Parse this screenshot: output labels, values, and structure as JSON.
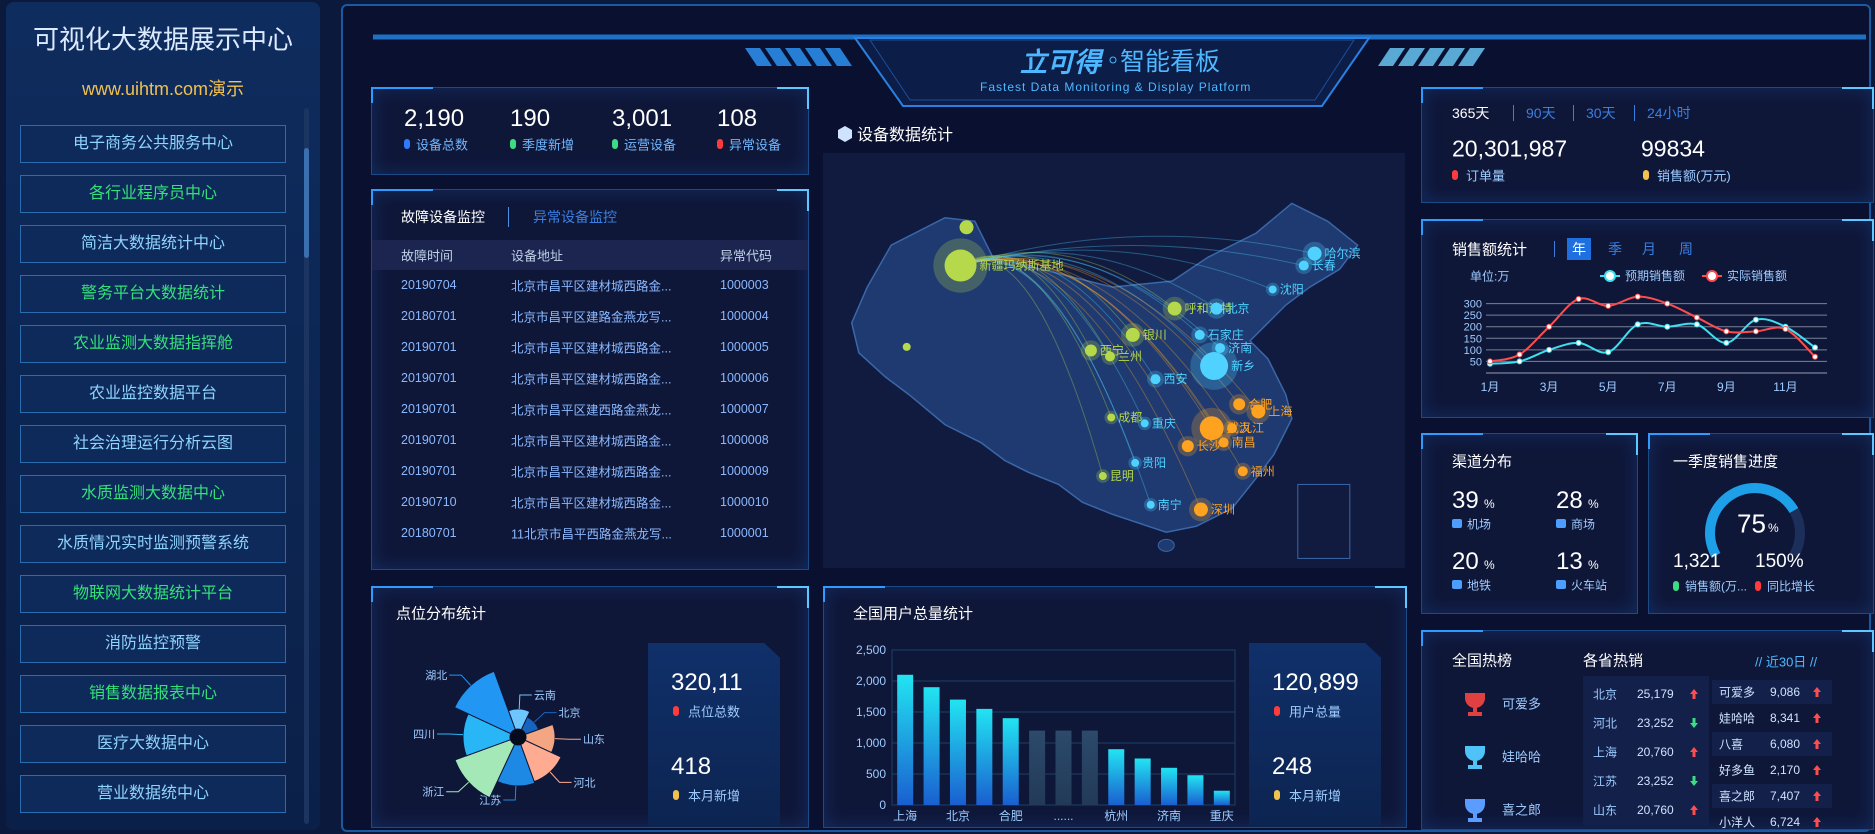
{
  "sidebar": {
    "title": "可视化大数据展示中心",
    "url": "www.uihtm.com演示",
    "menu": [
      "电子商务公共服务中心",
      "各行业程序员中心",
      "简洁大数据统计中心",
      "警务平台大数据统计",
      "农业监测大数据指挥舱",
      "农业监控数据平台",
      "社会治理运行分析云图",
      "水质监测大数据中心",
      "水质情况实时监测预警系统",
      "物联网大数据统计平台",
      "消防监控预警",
      "销售数据报表中心",
      "医疗大数据中心",
      "营业数据统中心"
    ]
  },
  "header": {
    "logo": "立可得",
    "title": "智能看板",
    "subtitle": "Fastest Data Monitoring & Display Platform"
  },
  "device_stats": [
    {
      "value": "2,190",
      "label": "设备总数"
    },
    {
      "value": "190",
      "label": "季度新增"
    },
    {
      "value": "3,001",
      "label": "运营设备"
    },
    {
      "value": "108",
      "label": "异常设备"
    }
  ],
  "fault_table": {
    "tabs": [
      "故障设备监控",
      "异常设备监控"
    ],
    "columns": [
      "故障时间",
      "设备地址",
      "异常代码"
    ],
    "rows": [
      [
        "20190704",
        "北京市昌平区建材城西路金...",
        "1000003"
      ],
      [
        "20180701",
        "北京市昌平区建路金燕龙写...",
        "1000004"
      ],
      [
        "20190701",
        "北京市昌平区建材城西路金...",
        "1000005"
      ],
      [
        "20190701",
        "北京市昌平区建材城西路金...",
        "1000006"
      ],
      [
        "20190701",
        "北京市昌平区建西路金燕龙...",
        "1000007"
      ],
      [
        "20190701",
        "北京市昌平区建材城西路金...",
        "1000008"
      ],
      [
        "20190701",
        "北京市昌平区建材城西路金...",
        "1000009"
      ],
      [
        "20190710",
        "北京市昌平区建材城西路金...",
        "1000010"
      ],
      [
        "20180701",
        "11北京市昌平西路金燕龙写...",
        "1000001"
      ]
    ]
  },
  "map": {
    "title": "设备数据统计",
    "cities": [
      "新疆玛纳斯基地",
      "哈尔滨",
      "长春",
      "沈阳",
      "呼和浩特",
      "北京",
      "银川",
      "石家庄",
      "济南",
      "西宁",
      "兰州",
      "新乡",
      "西安",
      "成都",
      "重庆",
      "武汉",
      "合肥",
      "上海",
      "九江",
      "南昌",
      "长沙",
      "贵阳",
      "福州",
      "昆明",
      "南宁",
      "深圳"
    ]
  },
  "point_panel": {
    "stats": [
      {
        "value": "320,11",
        "label": "点位总数"
      },
      {
        "value": "418",
        "label": "本月新增"
      }
    ]
  },
  "user_panel": {
    "stats": [
      {
        "value": "120,899",
        "label": "用户总量"
      },
      {
        "value": "248",
        "label": "本月新增"
      }
    ]
  },
  "orders": {
    "tabs": [
      "365天",
      "90天",
      "30天",
      "24小时"
    ],
    "stats": [
      {
        "value": "20,301,987",
        "label": "订单量"
      },
      {
        "value": "99834",
        "label": "销售额(万元)"
      }
    ]
  },
  "sales_panel": {
    "tabs": [
      "年",
      "季",
      "月",
      "周"
    ]
  },
  "channels": {
    "title": "渠道分布",
    "unit": "%",
    "items": [
      {
        "value": 39,
        "label": "机场"
      },
      {
        "value": 28,
        "label": "商场"
      },
      {
        "value": 20,
        "label": "地铁"
      },
      {
        "value": 13,
        "label": "火车站"
      }
    ]
  },
  "quarter_sales": {
    "title": "一季度销售进度",
    "progress": 75,
    "unit": "%",
    "stats": [
      {
        "value": "1,321",
        "label": "销售额(万..."
      },
      {
        "value": "150%",
        "label": "同比增长"
      }
    ]
  },
  "hot": {
    "national_title": "全国热榜",
    "national": [
      "可爱多",
      "娃哈哈",
      "喜之郎"
    ],
    "province_title": "各省热销",
    "period": "// 近30日 //",
    "provinces": [
      {
        "name": "北京",
        "value": "25,179",
        "trend": "up"
      },
      {
        "name": "河北",
        "value": "23,252",
        "trend": "down"
      },
      {
        "name": "上海",
        "value": "20,760",
        "trend": "up"
      },
      {
        "name": "江苏",
        "value": "23,252",
        "trend": "down"
      },
      {
        "name": "山东",
        "value": "20,760",
        "trend": "up"
      }
    ],
    "products": [
      {
        "name": "可爱多",
        "value": "9,086",
        "trend": "up"
      },
      {
        "name": "娃哈哈",
        "value": "8,341",
        "trend": "up"
      },
      {
        "name": "八喜",
        "value": "6,080",
        "trend": "up"
      },
      {
        "name": "好多鱼",
        "value": "2,170",
        "trend": "up"
      },
      {
        "name": "喜之郎",
        "value": "7,407",
        "trend": "up"
      },
      {
        "name": "小洋人",
        "value": "6,724",
        "trend": "up"
      }
    ]
  },
  "chart_data": [
    {
      "type": "rose",
      "title": "点位分布统计",
      "categories": [
        "云南",
        "北京",
        "山东",
        "河北",
        "江苏",
        "浙江",
        "四川",
        "湖北"
      ],
      "values": [
        12,
        8,
        18,
        25,
        26,
        38,
        30,
        40
      ],
      "colors": [
        "#6ec6ff",
        "#1565c0",
        "#f4a582",
        "#ffab91",
        "#1e88e5",
        "#a5e8b8",
        "#29b6f6",
        "#2196f3"
      ]
    },
    {
      "type": "bar",
      "title": "全国用户总量统计",
      "categories": [
        "上海",
        null,
        "北京",
        null,
        "合肥",
        null,
        "......",
        null,
        "杭州",
        null,
        "济南",
        null,
        "重庆"
      ],
      "values": [
        2100,
        1900,
        1700,
        1550,
        1400,
        1200,
        1200,
        1200,
        900,
        750,
        600,
        480,
        230
      ],
      "colors": [
        "#22e4f2",
        "#22e4f2",
        "#22e4f2",
        "#22e4f2",
        "#22e4f2",
        "#2c4a6b",
        "#2c4a6b",
        "#2c4a6b",
        "#22e4f2",
        "#22e4f2",
        "#22e4f2",
        "#22e4f2",
        "#22e4f2"
      ],
      "ylim": [
        0,
        2500
      ],
      "yticks": [
        0,
        500,
        {
          "value": 1000,
          "label": "1,000"
        },
        {
          "value": 1500,
          "label": "1,500"
        },
        {
          "value": 2000,
          "label": "2,000"
        },
        {
          "value": 2500,
          "label": "2,500"
        }
      ],
      "grid": true
    },
    {
      "type": "line",
      "title": "销售额统计",
      "y_label": "单位:万",
      "categories": [
        "1月",
        null,
        "3月",
        null,
        "5月",
        null,
        "7月",
        null,
        "9月",
        null,
        "11月",
        null
      ],
      "series": [
        {
          "name": "预期销售额",
          "color": "#3ee0f0",
          "values": [
            40,
            50,
            100,
            130,
            90,
            210,
            200,
            210,
            130,
            230,
            200,
            110
          ]
        },
        {
          "name": "实际销售额",
          "color": "#ff4d4d",
          "values": [
            50,
            80,
            200,
            320,
            290,
            330,
            300,
            240,
            180,
            180,
            190,
            70
          ]
        }
      ],
      "ylim": [
        0,
        350
      ],
      "yticks": [
        50,
        100,
        150,
        200,
        250,
        300
      ],
      "grid": true
    }
  ]
}
